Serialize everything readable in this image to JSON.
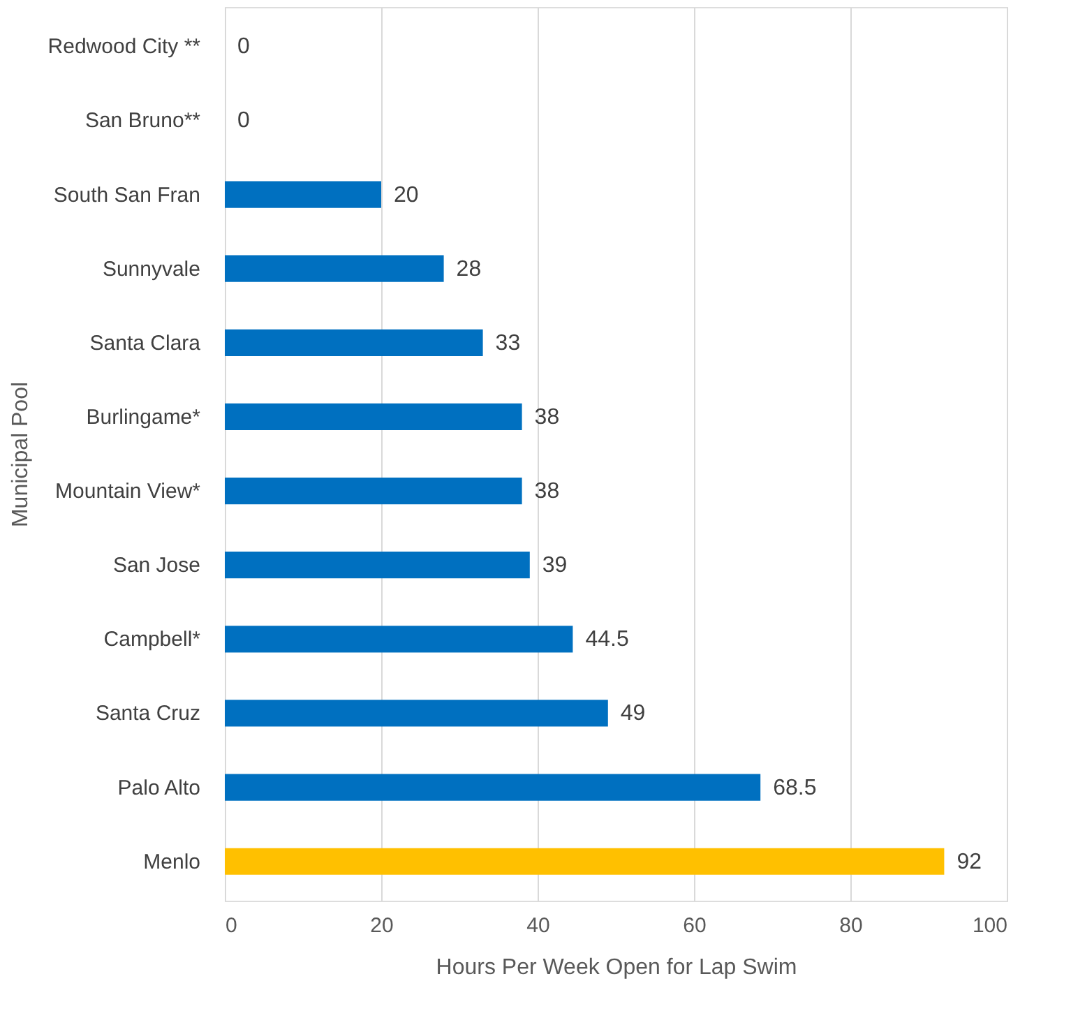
{
  "chart_data": {
    "type": "bar",
    "orientation": "horizontal",
    "xlabel": "Hours Per Week Open for Lap Swim",
    "ylabel": "Municipal Pool",
    "categories": [
      "Redwood City **",
      "San Bruno**",
      "South San Fran",
      "Sunnyvale",
      "Santa Clara",
      "Burlingame*",
      "Mountain View*",
      "San Jose",
      "Campbell*",
      "Santa Cruz",
      "Palo Alto",
      "Menlo"
    ],
    "values": [
      0,
      0,
      20,
      28,
      33,
      38,
      38,
      39,
      44.5,
      49,
      68.5,
      92
    ],
    "colors": [
      "#0070c0",
      "#0070c0",
      "#0070c0",
      "#0070c0",
      "#0070c0",
      "#0070c0",
      "#0070c0",
      "#0070c0",
      "#0070c0",
      "#0070c0",
      "#0070c0",
      "#ffc000"
    ],
    "xlim": [
      0,
      100
    ],
    "xticks": [
      0,
      20,
      40,
      60,
      80,
      100
    ],
    "grid": "x",
    "data_labels": true
  }
}
